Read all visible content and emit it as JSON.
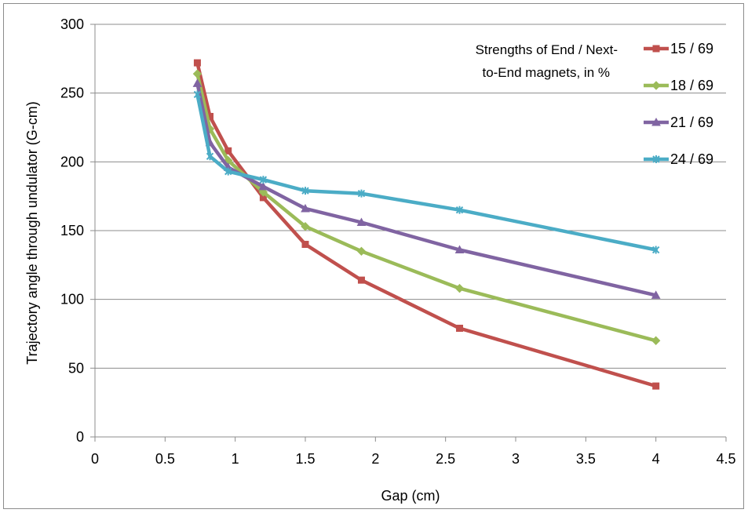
{
  "chart_data": {
    "type": "line",
    "title": "",
    "xlabel": "Gap  (cm)",
    "ylabel": "Trajectory angle through undulator  (G-cm)",
    "xlim": [
      0,
      4.5
    ],
    "ylim": [
      0,
      300
    ],
    "xticks": [
      "0",
      "0.5",
      "1",
      "1.5",
      "2",
      "2.5",
      "3",
      "3.5",
      "4",
      "4.5"
    ],
    "yticks": [
      "0",
      "50",
      "100",
      "150",
      "200",
      "250",
      "300"
    ],
    "grid": "horizontal",
    "legend_position": "right",
    "annotation": [
      "Strengths of End / Next-",
      "to-End magnets, in %"
    ],
    "series": [
      {
        "name": "15 / 69",
        "color": "#c0504d",
        "marker": "square",
        "points": [
          [
            0.73,
            272
          ],
          [
            0.82,
            233
          ],
          [
            0.95,
            208
          ],
          [
            1.2,
            174
          ],
          [
            1.5,
            140
          ],
          [
            1.9,
            114
          ],
          [
            2.6,
            79
          ],
          [
            4.0,
            37
          ]
        ]
      },
      {
        "name": "18 / 69",
        "color": "#9bbb59",
        "marker": "diamond",
        "points": [
          [
            0.73,
            264
          ],
          [
            0.82,
            224
          ],
          [
            0.95,
            201
          ],
          [
            1.2,
            178
          ],
          [
            1.5,
            153
          ],
          [
            1.9,
            135
          ],
          [
            2.6,
            108
          ],
          [
            4.0,
            70
          ]
        ]
      },
      {
        "name": "21 / 69",
        "color": "#8064a2",
        "marker": "triangle",
        "points": [
          [
            0.73,
            257
          ],
          [
            0.82,
            214
          ],
          [
            0.95,
            196
          ],
          [
            1.2,
            182
          ],
          [
            1.5,
            166
          ],
          [
            1.9,
            156
          ],
          [
            2.6,
            136
          ],
          [
            4.0,
            103
          ]
        ]
      },
      {
        "name": "24 / 69",
        "color": "#4bacc6",
        "marker": "star",
        "points": [
          [
            0.73,
            249
          ],
          [
            0.82,
            204
          ],
          [
            0.95,
            193
          ],
          [
            1.2,
            187
          ],
          [
            1.5,
            179
          ],
          [
            1.9,
            177
          ],
          [
            2.6,
            165
          ],
          [
            4.0,
            136
          ]
        ]
      }
    ]
  }
}
